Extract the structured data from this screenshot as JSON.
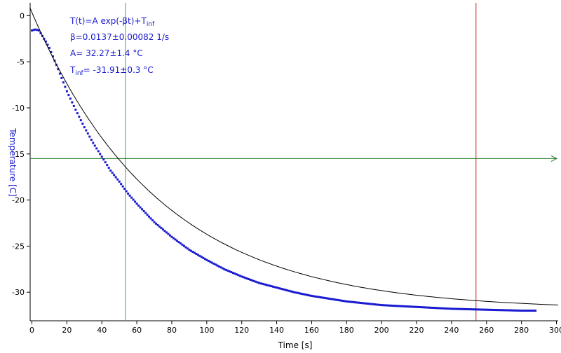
{
  "chart_data": {
    "type": "scatter",
    "xlabel": "Time [s]",
    "ylabel": "Temperature [C]",
    "xlim": [
      -1,
      301
    ],
    "ylim": [
      -33.1,
      1.4
    ],
    "x_ticks": [
      0,
      20,
      40,
      60,
      80,
      100,
      120,
      140,
      160,
      180,
      200,
      220,
      240,
      260,
      280,
      300
    ],
    "y_ticks": [
      0,
      -5,
      -10,
      -15,
      -20,
      -25,
      -30
    ],
    "grid": false,
    "fit": {
      "model": "T(t)=A exp(-βt)+Tinf",
      "A": 32.27,
      "beta": 0.0137,
      "T_inf": -31.91,
      "t_range": [
        -1,
        302
      ]
    },
    "series": [
      {
        "marker": "square",
        "color": "#1a1ad0",
        "x": [
          0,
          2,
          4,
          6,
          8,
          10,
          15,
          20,
          25,
          30,
          35,
          40,
          45,
          50,
          55,
          60,
          70,
          80,
          90,
          100,
          110,
          120,
          130,
          140,
          150,
          160,
          170,
          180,
          190,
          200,
          210,
          220,
          230,
          240,
          250,
          260,
          270,
          280,
          288
        ],
        "y": [
          -1.6,
          -1.5,
          -1.6,
          -2.2,
          -2.8,
          -3.5,
          -5.8,
          -8.2,
          -10.2,
          -12.1,
          -13.8,
          -15.3,
          -16.8,
          -18.0,
          -19.3,
          -20.4,
          -22.4,
          -24.0,
          -25.4,
          -26.5,
          -27.5,
          -28.3,
          -29.0,
          -29.5,
          -30.0,
          -30.4,
          -30.7,
          -31.0,
          -31.2,
          -31.4,
          -31.5,
          -31.6,
          -31.7,
          -31.8,
          -31.85,
          -31.9,
          -31.95,
          -32.0,
          -32.0
        ]
      }
    ],
    "cursors": {
      "vertical_green_x": 53.5,
      "vertical_red_x": 254,
      "horizontal_green_y": -15.5
    },
    "annotation": {
      "line1": "T(t)=A exp(-βt)+T",
      "line1_sub": "inf",
      "line2": "β=0.0137±0.00082 1/s",
      "line3": "A= 32.27±1.4 °C",
      "line4_pre": "T",
      "line4_sub": "inf",
      "line4_post": "= -31.91±0.3 °C"
    },
    "colors": {
      "axis": "#000000",
      "data": "#1a1ad0",
      "fit": "#000000",
      "green_cursor": "#22bb22",
      "red_cursor": "#cc2222",
      "ylabel": "#1a1ad0"
    }
  }
}
